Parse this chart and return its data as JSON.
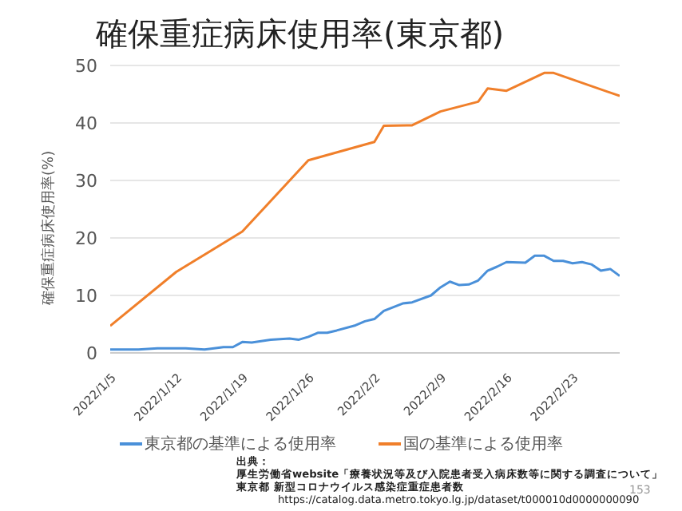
{
  "chart_data": {
    "type": "line",
    "title": "確保重症病床使用率(東京都)",
    "ylabel": "確保重症病床使用率(%)",
    "xlim": [
      "2022-01-05",
      "2022-02-28"
    ],
    "xticks": [
      {
        "value": "2022-01-05",
        "label": "2022/1/5"
      },
      {
        "value": "2022-01-12",
        "label": "2022/1/12"
      },
      {
        "value": "2022-01-19",
        "label": "2022/1/19"
      },
      {
        "value": "2022-01-26",
        "label": "2022/1/26"
      },
      {
        "value": "2022-02-02",
        "label": "2022/2/2"
      },
      {
        "value": "2022-02-09",
        "label": "2022/2/9"
      },
      {
        "value": "2022-02-16",
        "label": "2022/2/16"
      },
      {
        "value": "2022-02-23",
        "label": "2022/2/23"
      }
    ],
    "ylim": [
      0,
      50
    ],
    "yticks": [
      0,
      10,
      20,
      30,
      40,
      50
    ],
    "grid": "y",
    "legend": "bottom",
    "marker": "none",
    "line_style": "solid",
    "series": [
      {
        "name": "東京都の基準による使用率",
        "color": "#4a90d9",
        "x": [
          "2022-01-05",
          "2022-01-08",
          "2022-01-10",
          "2022-01-13",
          "2022-01-15",
          "2022-01-17",
          "2022-01-18",
          "2022-01-19",
          "2022-01-20",
          "2022-01-22",
          "2022-01-24",
          "2022-01-25",
          "2022-01-26",
          "2022-01-27",
          "2022-01-28",
          "2022-01-29",
          "2022-01-31",
          "2022-02-01",
          "2022-02-02",
          "2022-02-03",
          "2022-02-05",
          "2022-02-06",
          "2022-02-08",
          "2022-02-09",
          "2022-02-10",
          "2022-02-11",
          "2022-02-12",
          "2022-02-13",
          "2022-02-14",
          "2022-02-15",
          "2022-02-16",
          "2022-02-18",
          "2022-02-19",
          "2022-02-20",
          "2022-02-21",
          "2022-02-22",
          "2022-02-23",
          "2022-02-24",
          "2022-02-25",
          "2022-02-26",
          "2022-02-27",
          "2022-02-28"
        ],
        "values": [
          0.6,
          0.6,
          0.8,
          0.8,
          0.6,
          1.0,
          1.0,
          1.9,
          1.8,
          2.3,
          2.5,
          2.3,
          2.8,
          3.5,
          3.5,
          3.9,
          4.8,
          5.5,
          5.9,
          7.3,
          8.6,
          8.8,
          10.0,
          11.4,
          12.4,
          11.8,
          11.9,
          12.6,
          14.3,
          15.0,
          15.8,
          15.7,
          16.9,
          16.9,
          16.0,
          16.0,
          15.6,
          15.8,
          15.4,
          14.3,
          14.6,
          13.4
        ]
      },
      {
        "name": "国の基準による使用率",
        "color": "#f07f2a",
        "x": [
          "2022-01-05",
          "2022-01-12",
          "2022-01-19",
          "2022-01-26",
          "2022-02-02",
          "2022-02-03",
          "2022-02-06",
          "2022-02-09",
          "2022-02-13",
          "2022-02-14",
          "2022-02-16",
          "2022-02-20",
          "2022-02-21",
          "2022-02-28"
        ],
        "values": [
          4.7,
          14.1,
          21.1,
          33.5,
          36.7,
          39.5,
          39.6,
          42.0,
          43.7,
          46.0,
          45.6,
          48.7,
          48.7,
          44.7
        ]
      }
    ],
    "annotations": [
      "出典：",
      "厚生労働省website「療養状況等及び入院患者受入病床数等に関する調査について」",
      "東京都 新型コロナウイルス感染症重症患者数",
      "https://catalog.data.metro.tokyo.lg.jp/dataset/t000010d0000000090",
      "153"
    ]
  }
}
